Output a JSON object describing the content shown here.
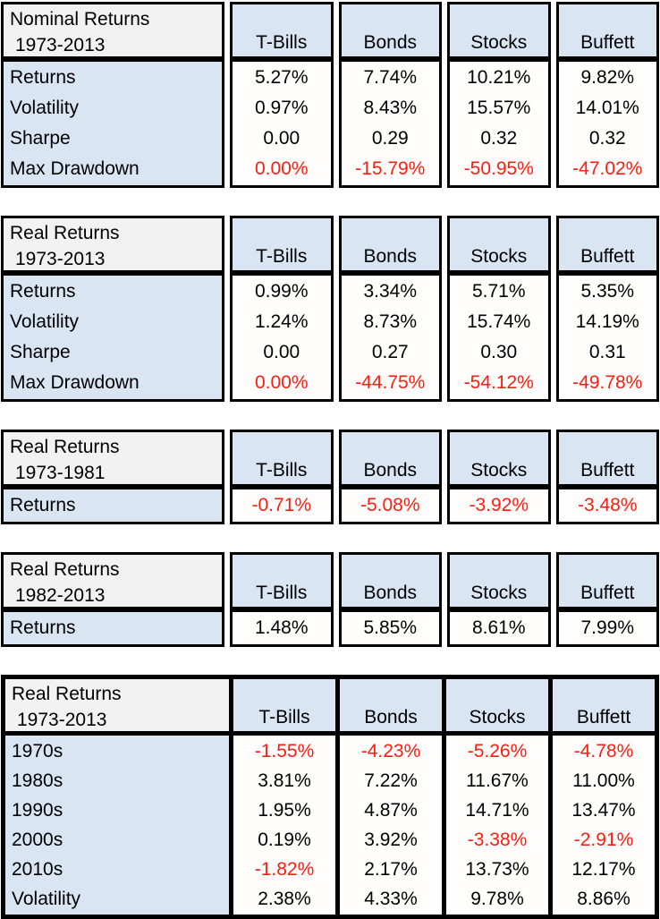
{
  "colors": {
    "page_background": "#ffffff",
    "title_cell_fill": "#f2f2f2",
    "header_and_label_fill": "#d9e5f2",
    "value_cell_fill": "#fffefd",
    "border": "#000000",
    "text": "#000000",
    "negative_text": "#fb1d10"
  },
  "chart_data": [
    {
      "type": "table",
      "title": "Nominal Returns",
      "period": "1973-2013",
      "columns": [
        "T-Bills",
        "Bonds",
        "Stocks",
        "Buffett"
      ],
      "rows": [
        {
          "label": "Returns",
          "values": [
            "5.27%",
            "7.74%",
            "10.21%",
            "9.82%"
          ],
          "red": [
            false,
            false,
            false,
            false
          ]
        },
        {
          "label": "Volatility",
          "values": [
            "0.97%",
            "8.43%",
            "15.57%",
            "14.01%"
          ],
          "red": [
            false,
            false,
            false,
            false
          ]
        },
        {
          "label": "Sharpe",
          "values": [
            "0.00",
            "0.29",
            "0.32",
            "0.32"
          ],
          "red": [
            false,
            false,
            false,
            false
          ]
        },
        {
          "label": "Max Drawdown",
          "values": [
            "0.00%",
            "-15.79%",
            "-50.95%",
            "-47.02%"
          ],
          "red": [
            true,
            true,
            true,
            true
          ]
        }
      ]
    },
    {
      "type": "table",
      "title": "Real Returns",
      "period": "1973-2013",
      "columns": [
        "T-Bills",
        "Bonds",
        "Stocks",
        "Buffett"
      ],
      "rows": [
        {
          "label": "Returns",
          "values": [
            "0.99%",
            "3.34%",
            "5.71%",
            "5.35%"
          ],
          "red": [
            false,
            false,
            false,
            false
          ]
        },
        {
          "label": "Volatility",
          "values": [
            "1.24%",
            "8.73%",
            "15.74%",
            "14.19%"
          ],
          "red": [
            false,
            false,
            false,
            false
          ]
        },
        {
          "label": "Sharpe",
          "values": [
            "0.00",
            "0.27",
            "0.30",
            "0.31"
          ],
          "red": [
            false,
            false,
            false,
            false
          ]
        },
        {
          "label": "Max Drawdown",
          "values": [
            "0.00%",
            "-44.75%",
            "-54.12%",
            "-49.78%"
          ],
          "red": [
            true,
            true,
            true,
            true
          ]
        }
      ]
    },
    {
      "type": "table",
      "title": "Real Returns",
      "period": "1973-1981",
      "columns": [
        "T-Bills",
        "Bonds",
        "Stocks",
        "Buffett"
      ],
      "rows": [
        {
          "label": "Returns",
          "values": [
            "-0.71%",
            "-5.08%",
            "-3.92%",
            "-3.48%"
          ],
          "red": [
            true,
            true,
            true,
            true
          ]
        }
      ]
    },
    {
      "type": "table",
      "title": "Real Returns",
      "period": "1982-2013",
      "columns": [
        "T-Bills",
        "Bonds",
        "Stocks",
        "Buffett"
      ],
      "rows": [
        {
          "label": "Returns",
          "values": [
            "1.48%",
            "5.85%",
            "8.61%",
            "7.99%"
          ],
          "red": [
            false,
            false,
            false,
            false
          ]
        }
      ]
    },
    {
      "type": "table",
      "title": "Real Returns",
      "period": "1973-2013",
      "columns": [
        "T-Bills",
        "Bonds",
        "Stocks",
        "Buffett"
      ],
      "rows": [
        {
          "label": "1970s",
          "values": [
            "-1.55%",
            "-4.23%",
            "-5.26%",
            "-4.78%"
          ],
          "red": [
            true,
            true,
            true,
            true
          ]
        },
        {
          "label": "1980s",
          "values": [
            "3.81%",
            "7.22%",
            "11.67%",
            "11.00%"
          ],
          "red": [
            false,
            false,
            false,
            false
          ]
        },
        {
          "label": "1990s",
          "values": [
            "1.95%",
            "4.87%",
            "14.71%",
            "13.47%"
          ],
          "red": [
            false,
            false,
            false,
            false
          ]
        },
        {
          "label": "2000s",
          "values": [
            "0.19%",
            "3.92%",
            "-3.38%",
            "-2.91%"
          ],
          "red": [
            false,
            false,
            true,
            true
          ]
        },
        {
          "label": "2010s",
          "values": [
            "-1.82%",
            "2.17%",
            "13.73%",
            "12.17%"
          ],
          "red": [
            true,
            false,
            false,
            false
          ]
        },
        {
          "label": "Volatility",
          "values": [
            "2.38%",
            "4.33%",
            "9.78%",
            "8.86%"
          ],
          "red": [
            false,
            false,
            false,
            false
          ]
        }
      ]
    }
  ]
}
